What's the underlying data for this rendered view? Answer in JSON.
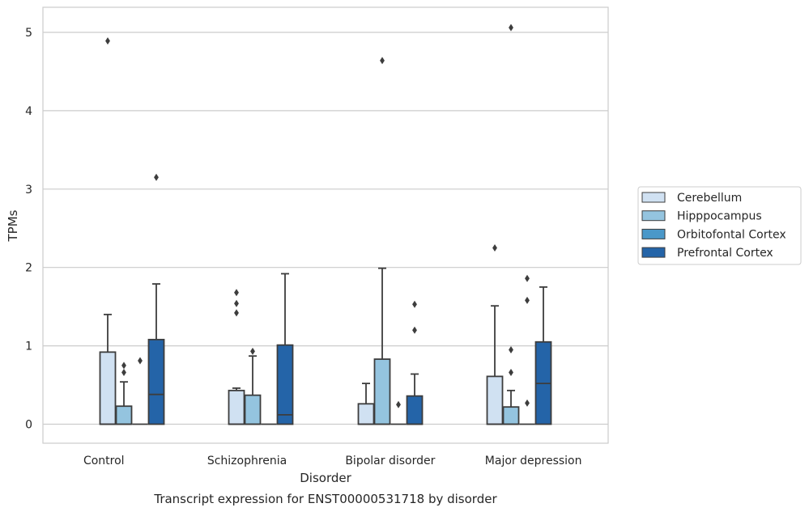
{
  "chart_data": {
    "type": "box",
    "title": "",
    "caption": "Transcript expression for ENST00000531718 by disorder",
    "xlabel": "Disorder",
    "ylabel": "TPMs",
    "ylim": [
      -0.25,
      5.32
    ],
    "yticks": [
      "0",
      "1",
      "2",
      "3",
      "4",
      "5"
    ],
    "grid": "horizontal",
    "legend_placement": "right",
    "categories": [
      "Control",
      "Schizophrenia",
      "Bipolar disorder",
      "Major depression"
    ],
    "series": [
      {
        "name": "Cerebellum",
        "color": "#d0e1f2",
        "boxes": [
          {
            "q1": 0,
            "median": 0,
            "q3": 0.92,
            "wlo": 0,
            "whi": 1.4,
            "fliers": [
              4.89
            ]
          },
          {
            "q1": 0,
            "median": 0,
            "q3": 0.43,
            "wlo": 0,
            "whi": 0.46,
            "fliers": [
              1.42,
              1.54,
              1.68
            ]
          },
          {
            "q1": 0,
            "median": 0,
            "q3": 0.26,
            "wlo": 0,
            "whi": 0.52,
            "fliers": []
          },
          {
            "q1": 0,
            "median": 0,
            "q3": 0.61,
            "wlo": 0,
            "whi": 1.51,
            "fliers": [
              2.25
            ]
          }
        ]
      },
      {
        "name": "Hipppocampus",
        "color": "#94c4df",
        "boxes": [
          {
            "q1": 0,
            "median": 0,
            "q3": 0.23,
            "wlo": 0,
            "whi": 0.54,
            "fliers": [
              0.66,
              0.75
            ]
          },
          {
            "q1": 0,
            "median": 0,
            "q3": 0.37,
            "wlo": 0,
            "whi": 0.87,
            "fliers": [
              0.93
            ]
          },
          {
            "q1": 0,
            "median": 0,
            "q3": 0.83,
            "wlo": 0,
            "whi": 1.99,
            "fliers": [
              4.64
            ]
          },
          {
            "q1": 0,
            "median": 0,
            "q3": 0.22,
            "wlo": 0,
            "whi": 0.43,
            "fliers": [
              0.66,
              0.95,
              5.06
            ]
          }
        ]
      },
      {
        "name": "Orbitofontal Cortex",
        "color": "#4a98c9",
        "boxes": [
          {
            "q1": 0,
            "median": 0,
            "q3": 0,
            "wlo": 0,
            "whi": 0,
            "fliers": [
              0.81
            ]
          },
          {
            "q1": 0,
            "median": 0,
            "q3": 0,
            "wlo": 0,
            "whi": 0,
            "fliers": []
          },
          {
            "q1": 0,
            "median": 0,
            "q3": 0,
            "wlo": 0,
            "whi": 0,
            "fliers": [
              0.25
            ]
          },
          {
            "q1": 0,
            "median": 0,
            "q3": 0,
            "wlo": 0,
            "whi": 0,
            "fliers": [
              0.27,
              1.58,
              1.86
            ]
          }
        ]
      },
      {
        "name": "Prefrontal Cortex",
        "color": "#2464a8",
        "boxes": [
          {
            "q1": 0,
            "median": 0.38,
            "q3": 1.08,
            "wlo": 0,
            "whi": 1.79,
            "fliers": [
              3.15
            ]
          },
          {
            "q1": 0,
            "median": 0.12,
            "q3": 1.01,
            "wlo": 0,
            "whi": 1.92,
            "fliers": []
          },
          {
            "q1": 0,
            "median": 0,
            "q3": 0.36,
            "wlo": 0,
            "whi": 0.64,
            "fliers": [
              1.2,
              1.53
            ]
          },
          {
            "q1": 0,
            "median": 0.52,
            "q3": 1.05,
            "wlo": 0,
            "whi": 1.75,
            "fliers": []
          }
        ]
      }
    ]
  }
}
